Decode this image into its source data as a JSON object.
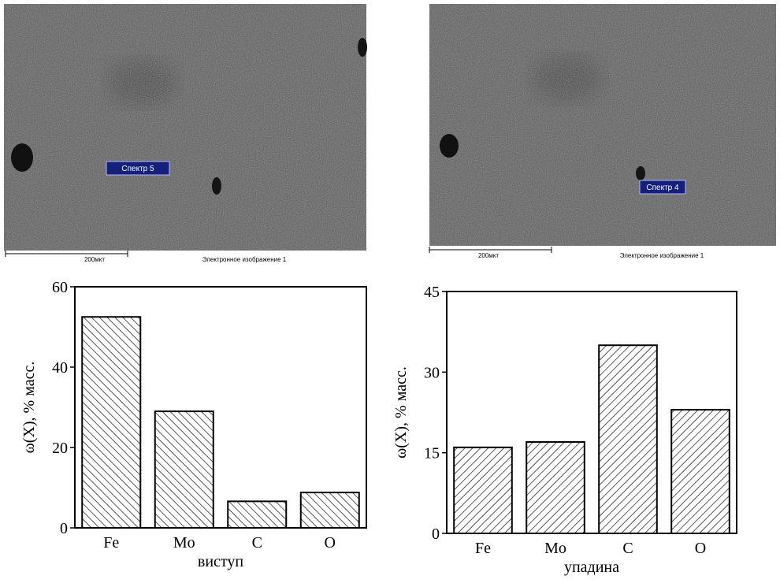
{
  "images": [
    {
      "label": "Спектр 5",
      "scale": "200мкт",
      "caption": "Электронное изображение 1"
    },
    {
      "label": "Спектр 4",
      "scale": "200мкт",
      "caption": "Электронное изображение 1"
    }
  ],
  "chart_data": [
    {
      "type": "bar",
      "categories": [
        "Fe",
        "Mo",
        "C",
        "O"
      ],
      "values": [
        52.5,
        29,
        6.6,
        8.8
      ],
      "color": "#000000",
      "ylim": [
        0,
        60
      ],
      "yticks": [
        0,
        20,
        40,
        60
      ],
      "xlabel": "виступ",
      "ylabel": "ω(X), % масс."
    },
    {
      "type": "bar",
      "categories": [
        "Fe",
        "Mo",
        "C",
        "O"
      ],
      "values": [
        16,
        17,
        35,
        23
      ],
      "color": "#000000",
      "ylim": [
        0,
        45
      ],
      "yticks": [
        0,
        15,
        30,
        45
      ],
      "xlabel": "упадина",
      "ylabel": "ω(X), % масс."
    }
  ]
}
